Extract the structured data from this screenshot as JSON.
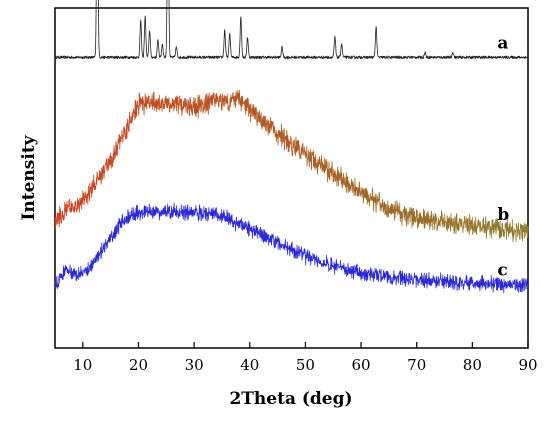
{
  "chart_data": {
    "type": "line",
    "title": "",
    "xlabel": "2Theta (deg)",
    "ylabel": "Intensity",
    "xlim": [
      5,
      90
    ],
    "x_ticks": [
      10,
      20,
      30,
      40,
      50,
      60,
      70,
      80,
      90
    ],
    "grid": false,
    "legend": "none",
    "series": [
      {
        "name": "a",
        "color": "#222222",
        "baseline": 0.855,
        "noise": 0.004,
        "peaks": [
          {
            "x": 12.6,
            "height": 0.58
          },
          {
            "x": 20.4,
            "height": 0.11
          },
          {
            "x": 21.2,
            "height": 0.12
          },
          {
            "x": 22.0,
            "height": 0.08
          },
          {
            "x": 23.5,
            "height": 0.05
          },
          {
            "x": 24.3,
            "height": 0.04
          },
          {
            "x": 25.3,
            "height": 0.52
          },
          {
            "x": 26.8,
            "height": 0.03
          },
          {
            "x": 35.5,
            "height": 0.08
          },
          {
            "x": 36.4,
            "height": 0.07
          },
          {
            "x": 38.4,
            "height": 0.12
          },
          {
            "x": 39.6,
            "height": 0.06
          },
          {
            "x": 45.8,
            "height": 0.03
          },
          {
            "x": 55.3,
            "height": 0.06
          },
          {
            "x": 56.5,
            "height": 0.04
          },
          {
            "x": 62.7,
            "height": 0.09
          },
          {
            "x": 71.5,
            "height": 0.015
          },
          {
            "x": 76.5,
            "height": 0.015
          }
        ]
      },
      {
        "name": "b",
        "color": "#d04020",
        "color_end": "#8a7a2a",
        "noise": 0.025,
        "profile": [
          [
            5,
            0.37
          ],
          [
            7,
            0.4
          ],
          [
            10,
            0.43
          ],
          [
            15,
            0.55
          ],
          [
            18,
            0.65
          ],
          [
            20,
            0.72
          ],
          [
            25,
            0.72
          ],
          [
            30,
            0.71
          ],
          [
            35,
            0.73
          ],
          [
            38,
            0.73
          ],
          [
            40,
            0.7
          ],
          [
            45,
            0.63
          ],
          [
            50,
            0.57
          ],
          [
            55,
            0.51
          ],
          [
            60,
            0.46
          ],
          [
            65,
            0.41
          ],
          [
            70,
            0.38
          ],
          [
            75,
            0.37
          ],
          [
            80,
            0.36
          ],
          [
            85,
            0.35
          ],
          [
            90,
            0.345
          ]
        ]
      },
      {
        "name": "c",
        "color": "#2a28d8",
        "noise": 0.018,
        "profile": [
          [
            5,
            0.18
          ],
          [
            7,
            0.23
          ],
          [
            9,
            0.21
          ],
          [
            11,
            0.23
          ],
          [
            14,
            0.3
          ],
          [
            17,
            0.37
          ],
          [
            20,
            0.4
          ],
          [
            25,
            0.4
          ],
          [
            30,
            0.4
          ],
          [
            35,
            0.39
          ],
          [
            40,
            0.35
          ],
          [
            45,
            0.31
          ],
          [
            50,
            0.27
          ],
          [
            55,
            0.24
          ],
          [
            60,
            0.22
          ],
          [
            65,
            0.21
          ],
          [
            70,
            0.2
          ],
          [
            80,
            0.19
          ],
          [
            90,
            0.185
          ]
        ]
      }
    ]
  }
}
